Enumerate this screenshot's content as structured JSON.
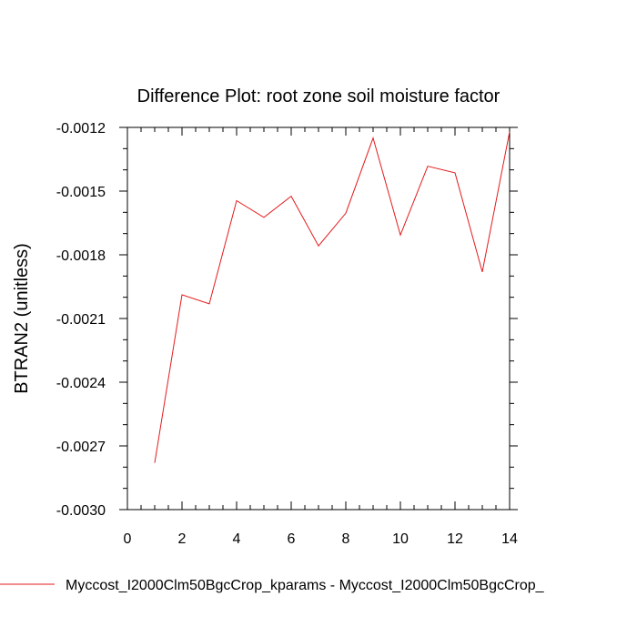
{
  "chart_data": {
    "type": "line",
    "title": "Difference Plot: root zone soil moisture factor",
    "xlabel": "",
    "ylabel": "BTRAN2  (unitless)",
    "xlim": [
      0,
      14
    ],
    "ylim": [
      -0.003,
      -0.0012
    ],
    "xticks": [
      0,
      2,
      4,
      6,
      8,
      10,
      12,
      14
    ],
    "yticks": [
      -0.003,
      -0.0027,
      -0.0024,
      -0.0021,
      -0.0018,
      -0.0015,
      -0.0012
    ],
    "ytick_labels": [
      "-0.0030",
      "-0.0027",
      "-0.0024",
      "-0.0021",
      "-0.0018",
      "-0.0015",
      "-0.0012"
    ],
    "grid": false,
    "legend_position": "bottom",
    "series": [
      {
        "name": "Myccost_I2000Clm50BgcCrop_kparams - Myccost_I2000Clm50BgcCrop_",
        "color": "#e31a1c",
        "x": [
          1,
          2,
          3,
          4,
          5,
          6,
          7,
          8,
          9,
          10,
          11,
          12,
          13,
          14
        ],
        "y": [
          -0.00278,
          -0.001988,
          -0.002031,
          -0.001545,
          -0.001624,
          -0.001524,
          -0.001758,
          -0.001604,
          -0.00125,
          -0.001707,
          -0.001383,
          -0.001414,
          -0.001881,
          -0.00122
        ]
      }
    ]
  }
}
